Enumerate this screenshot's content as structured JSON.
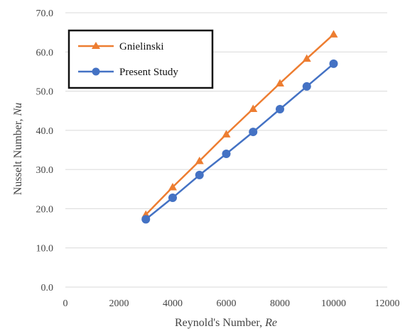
{
  "chart_data": {
    "type": "line",
    "xlabel": "Reynold's Number, ",
    "xlabel_var": "Re",
    "ylabel": "Nusselt Number, ",
    "ylabel_var": "Nu",
    "xlim": [
      0,
      12000
    ],
    "ylim": [
      0,
      70
    ],
    "x_ticks": [
      0,
      2000,
      4000,
      6000,
      8000,
      10000,
      12000
    ],
    "y_ticks": [
      "0.0",
      "10.0",
      "20.0",
      "30.0",
      "40.0",
      "50.0",
      "60.0",
      "70.0"
    ],
    "grid": "horizontal",
    "legend_position": "top-left",
    "series": [
      {
        "name": "Gnielinski",
        "color": "#ED7D31",
        "marker": "triangle",
        "x": [
          3000,
          4000,
          5000,
          6000,
          7000,
          8000,
          9000,
          10000
        ],
        "values": [
          18.5,
          25.5,
          32.2,
          39.0,
          45.5,
          52.0,
          58.3,
          64.5
        ]
      },
      {
        "name": "Present Study",
        "color": "#4472C4",
        "marker": "circle",
        "x": [
          3000,
          4000,
          5000,
          6000,
          7000,
          8000,
          9000,
          10000
        ],
        "values": [
          17.3,
          22.8,
          28.6,
          34.0,
          39.6,
          45.4,
          51.2,
          57.0
        ]
      }
    ]
  }
}
